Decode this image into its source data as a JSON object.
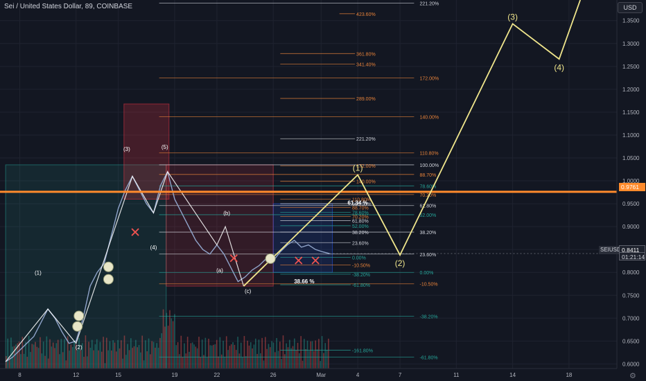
{
  "header": {
    "title": "Sei / United States Dollar, 89, COINBASE",
    "currency_button": "USD"
  },
  "price_badges": {
    "level": "0.9761",
    "last": "0.8411",
    "countdown": "01:21:14",
    "symbol": "SEIUSD"
  },
  "colors": {
    "background": "#131722",
    "wave_line": "#f0e68c",
    "level_line": "#ff8b2c",
    "fib_orange": "#e8833a",
    "fib_white": "#d1d4dc",
    "fib_green": "#26a69a"
  },
  "chart_data": {
    "type": "line",
    "symbol": "SEIUSD",
    "exchange": "COINBASE",
    "interval": "89",
    "x_ticks": [
      "8",
      "12",
      "15",
      "19",
      "22",
      "26",
      "Mar",
      "4",
      "7",
      "11",
      "14",
      "18"
    ],
    "y_ticks": [
      "0.6000",
      "0.6500",
      "0.7000",
      "0.7500",
      "0.8000",
      "0.8500",
      "0.9000",
      "0.9500",
      "1.0000",
      "1.0500",
      "1.1000",
      "1.1500",
      "1.2000",
      "1.2500",
      "1.3000",
      "1.3500"
    ],
    "y_range": [
      0.59,
      1.395
    ],
    "horizontal_level": 0.9761,
    "last_price": 0.8411,
    "price_path": [
      {
        "d": 7.0,
        "p": 0.605
      },
      {
        "d": 7.5,
        "p": 0.615
      },
      {
        "d": 8.0,
        "p": 0.63
      },
      {
        "d": 8.5,
        "p": 0.645
      },
      {
        "d": 9.0,
        "p": 0.66
      },
      {
        "d": 9.5,
        "p": 0.69
      },
      {
        "d": 10.0,
        "p": 0.72
      },
      {
        "d": 10.5,
        "p": 0.7
      },
      {
        "d": 11.0,
        "p": 0.67
      },
      {
        "d": 11.5,
        "p": 0.645
      },
      {
        "d": 12.0,
        "p": 0.65
      },
      {
        "d": 12.5,
        "p": 0.7
      },
      {
        "d": 13.0,
        "p": 0.77
      },
      {
        "d": 13.5,
        "p": 0.8
      },
      {
        "d": 14.0,
        "p": 0.82
      },
      {
        "d": 14.5,
        "p": 0.88
      },
      {
        "d": 15.0,
        "p": 0.94
      },
      {
        "d": 15.5,
        "p": 0.98
      },
      {
        "d": 16.0,
        "p": 1.01
      },
      {
        "d": 16.5,
        "p": 0.98
      },
      {
        "d": 17.0,
        "p": 0.95
      },
      {
        "d": 17.5,
        "p": 0.93
      },
      {
        "d": 18.0,
        "p": 0.99
      },
      {
        "d": 18.5,
        "p": 1.02
      },
      {
        "d": 19.0,
        "p": 0.96
      },
      {
        "d": 19.5,
        "p": 0.93
      },
      {
        "d": 20.0,
        "p": 0.9
      },
      {
        "d": 20.5,
        "p": 0.87
      },
      {
        "d": 21.0,
        "p": 0.85
      },
      {
        "d": 21.5,
        "p": 0.84
      },
      {
        "d": 22.0,
        "p": 0.86
      },
      {
        "d": 22.5,
        "p": 0.84
      },
      {
        "d": 23.0,
        "p": 0.81
      },
      {
        "d": 23.5,
        "p": 0.78
      },
      {
        "d": 24.0,
        "p": 0.79
      },
      {
        "d": 24.5,
        "p": 0.805
      },
      {
        "d": 25.0,
        "p": 0.815
      },
      {
        "d": 25.5,
        "p": 0.83
      },
      {
        "d": 26.0,
        "p": 0.825
      },
      {
        "d": 26.5,
        "p": 0.845
      },
      {
        "d": 27.0,
        "p": 0.86
      },
      {
        "d": 27.5,
        "p": 0.87
      },
      {
        "d": 28.0,
        "p": 0.855
      },
      {
        "d": 28.5,
        "p": 0.86
      },
      {
        "d": 29.0,
        "p": 0.85
      },
      {
        "d": 29.5,
        "p": 0.845
      },
      {
        "d": 30.0,
        "p": 0.8411
      }
    ],
    "projection": [
      {
        "d": 23.9,
        "p": 0.77,
        "label": ""
      },
      {
        "d": 32.0,
        "p": 1.013,
        "label": "(1)"
      },
      {
        "d": 35.0,
        "p": 0.838,
        "label": "(2)"
      },
      {
        "d": 43.0,
        "p": 1.343,
        "label": "(3)"
      },
      {
        "d": 46.3,
        "p": 1.266,
        "label": "(4)"
      },
      {
        "d": 47.8,
        "p": 1.395,
        "label": ""
      }
    ],
    "wave_labels": [
      {
        "d": 9.3,
        "p": 0.795,
        "label": "(1)"
      },
      {
        "d": 12.2,
        "p": 0.632,
        "label": "(2)"
      },
      {
        "d": 15.6,
        "p": 1.065,
        "label": "(3)"
      },
      {
        "d": 17.5,
        "p": 0.85,
        "label": "(4)"
      },
      {
        "d": 18.3,
        "p": 1.07,
        "label": "(5)"
      },
      {
        "d": 22.2,
        "p": 0.8,
        "label": "(a)"
      },
      {
        "d": 22.7,
        "p": 0.925,
        "label": "(b)"
      },
      {
        "d": 24.2,
        "p": 0.755,
        "label": "(c)"
      }
    ],
    "fib_levels": [
      {
        "label": "221.20%",
        "p": 1.388,
        "x0": 17.9,
        "x1": 36.0,
        "color": "white",
        "label_d": 36.3
      },
      {
        "label": "423.60%",
        "p": 1.365,
        "x0": 30.7,
        "x1": 31.8,
        "color": "orange",
        "label_d": 31.8
      },
      {
        "label": "361.80%",
        "p": 1.278,
        "x0": 26.5,
        "x1": 31.8,
        "color": "orange",
        "label_d": 31.8
      },
      {
        "label": "341.40%",
        "p": 1.255,
        "x0": 26.5,
        "x1": 31.8,
        "color": "orange",
        "label_d": 31.8
      },
      {
        "label": "172.00%",
        "p": 1.225,
        "x0": 17.9,
        "x1": 36.0,
        "color": "orange",
        "label_d": 36.3
      },
      {
        "label": "289.00%",
        "p": 1.18,
        "x0": 26.5,
        "x1": 31.8,
        "color": "orange",
        "label_d": 31.8
      },
      {
        "label": "140.00%",
        "p": 1.14,
        "x0": 17.9,
        "x1": 36.0,
        "color": "orange",
        "label_d": 36.3
      },
      {
        "label": "221.20%",
        "p": 1.092,
        "x0": 26.5,
        "x1": 31.8,
        "color": "white",
        "label_d": 31.8
      },
      {
        "label": "110.80%",
        "p": 1.061,
        "x0": 17.9,
        "x1": 36.0,
        "color": "orange",
        "label_d": 36.3
      },
      {
        "label": "100.00%",
        "p": 1.035,
        "x0": 17.9,
        "x1": 36.0,
        "color": "white",
        "label_d": 36.3
      },
      {
        "label": "172.00%",
        "p": 1.033,
        "x0": 26.5,
        "x1": 31.8,
        "color": "orange",
        "label_d": 31.8
      },
      {
        "label": "88.70%",
        "p": 1.014,
        "x0": 17.9,
        "x1": 36.0,
        "color": "orange",
        "label_d": 36.3
      },
      {
        "label": "140.00%",
        "p": 0.999,
        "x0": 26.5,
        "x1": 31.8,
        "color": "orange",
        "label_d": 31.8
      },
      {
        "label": "78.60%",
        "p": 0.989,
        "x0": 17.9,
        "x1": 36.0,
        "color": "green",
        "label_d": 36.3
      },
      {
        "label": "70.20%",
        "p": 0.97,
        "x0": 17.9,
        "x1": 36.0,
        "color": "orange",
        "label_d": 36.3
      },
      {
        "label": "110.80%",
        "p": 0.96,
        "x0": 26.5,
        "x1": 31.5,
        "color": "orange",
        "label_d": 31.5
      },
      {
        "label": "100.00%",
        "p": 0.95,
        "x0": 26.5,
        "x1": 31.5,
        "color": "white",
        "label_d": 31.5
      },
      {
        "label": "61.80%",
        "p": 0.946,
        "x0": 17.9,
        "x1": 36.0,
        "color": "white",
        "label_d": 36.3
      },
      {
        "label": "88.70%",
        "p": 0.942,
        "x0": 26.5,
        "x1": 31.5,
        "color": "orange",
        "label_d": 31.5
      },
      {
        "label": "78.60%",
        "p": 0.931,
        "x0": 26.5,
        "x1": 31.5,
        "color": "green",
        "label_d": 31.5
      },
      {
        "label": "52.00%",
        "p": 0.926,
        "x0": 17.9,
        "x1": 36.0,
        "color": "green",
        "label_d": 36.3
      },
      {
        "label": "70.20%",
        "p": 0.922,
        "x0": 26.5,
        "x1": 31.5,
        "color": "orange",
        "label_d": 31.5
      },
      {
        "label": "61.80%",
        "p": 0.913,
        "x0": 26.5,
        "x1": 31.5,
        "color": "white",
        "label_d": 31.5
      },
      {
        "label": "52.00%",
        "p": 0.902,
        "x0": 26.5,
        "x1": 31.5,
        "color": "green",
        "label_d": 31.5
      },
      {
        "label": "38.20%",
        "p": 0.888,
        "x0": 17.9,
        "x1": 36.0,
        "color": "white",
        "label_d": 36.3
      },
      {
        "label": "38.20%",
        "p": 0.888,
        "x0": 26.5,
        "x1": 31.5,
        "color": "white",
        "label_d": 31.5
      },
      {
        "label": "23.60%",
        "p": 0.865,
        "x0": 26.5,
        "x1": 31.5,
        "color": "white",
        "label_d": 31.5
      },
      {
        "label": "23.60%",
        "p": 0.84,
        "x0": 17.9,
        "x1": 36.0,
        "color": "white",
        "label_d": 36.3
      },
      {
        "label": "0.00%",
        "p": 0.833,
        "x0": 26.5,
        "x1": 31.5,
        "color": "green",
        "label_d": 31.5
      },
      {
        "label": "-10.50%",
        "p": 0.816,
        "x0": 26.5,
        "x1": 31.5,
        "color": "orange",
        "label_d": 31.5
      },
      {
        "label": "0.00%",
        "p": 0.8,
        "x0": 17.9,
        "x1": 36.0,
        "color": "green",
        "label_d": 36.3
      },
      {
        "label": "-38.20%",
        "p": 0.796,
        "x0": 26.5,
        "x1": 31.5,
        "color": "green",
        "label_d": 31.5
      },
      {
        "label": "-10.50%",
        "p": 0.775,
        "x0": 17.9,
        "x1": 36.0,
        "color": "orange",
        "label_d": 36.3
      },
      {
        "label": "-61.80%",
        "p": 0.773,
        "x0": 26.5,
        "x1": 31.5,
        "color": "green",
        "label_d": 31.5
      },
      {
        "label": "-38.20%",
        "p": 0.704,
        "x0": 17.9,
        "x1": 36.0,
        "color": "green",
        "label_d": 36.3
      },
      {
        "label": "-161.80%",
        "p": 0.63,
        "x0": 26.5,
        "x1": 31.5,
        "color": "green",
        "label_d": 31.5
      },
      {
        "label": "-61.80%",
        "p": 0.615,
        "x0": 17.9,
        "x1": 36.0,
        "color": "green",
        "label_d": 36.3
      }
    ],
    "volume_profile_labels": [
      {
        "d": 32.0,
        "p": 0.948,
        "label": "61.34 %"
      },
      {
        "d": 28.2,
        "p": 0.776,
        "label": "38.66 %"
      }
    ],
    "markers": {
      "crosses": [
        {
          "d": 16.2,
          "p": 0.888
        },
        {
          "d": 23.2,
          "p": 0.831
        },
        {
          "d": 27.8,
          "p": 0.826
        },
        {
          "d": 29.0,
          "p": 0.826
        }
      ],
      "circles": [
        {
          "d": 12.2,
          "p": 0.705
        },
        {
          "d": 12.1,
          "p": 0.682
        },
        {
          "d": 14.3,
          "p": 0.812
        },
        {
          "d": 14.3,
          "p": 0.785
        },
        {
          "d": 25.8,
          "p": 0.83
        }
      ]
    },
    "shaded_regions": [
      {
        "x0": 7.0,
        "x1": 18.4,
        "p0": 0.59,
        "p1": 1.035,
        "color": "#26a69a",
        "opacity": 0.12
      },
      {
        "x0": 18.4,
        "x1": 26.0,
        "p0": 0.77,
        "p1": 1.035,
        "color": "#f23645",
        "opacity": 0.14
      },
      {
        "x0": 26.0,
        "x1": 30.2,
        "p0": 0.8,
        "p1": 0.95,
        "color": "#2962ff",
        "opacity": 0.14
      },
      {
        "x0": 15.4,
        "x1": 18.6,
        "p0": 0.96,
        "p1": 1.168,
        "color": "#f23645",
        "opacity": 0.22
      }
    ]
  }
}
